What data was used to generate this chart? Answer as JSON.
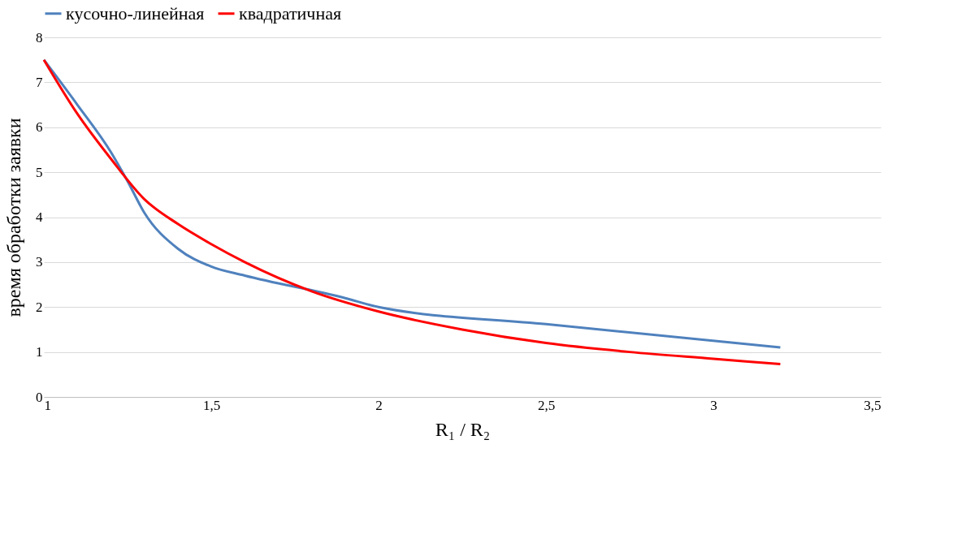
{
  "chart_data": {
    "type": "line",
    "xlabel": "R₁ / R₂",
    "ylabel": "время обработки заявки",
    "xlim": [
      1,
      3.5
    ],
    "xticks": [
      1,
      {
        "value": 1.5,
        "label": "1,5"
      },
      2,
      {
        "value": 2.5,
        "label": "2,5"
      },
      3,
      {
        "value": 3.5,
        "label": "3,5"
      }
    ],
    "ylim": [
      0,
      8
    ],
    "yticks": [
      0,
      1,
      2,
      3,
      4,
      5,
      6,
      7,
      8
    ],
    "grid": "y",
    "legend": "top",
    "marker": "none",
    "line_style": "solid",
    "series": [
      {
        "name": "кусочно-линейная",
        "color": "#4f81bd",
        "x": [
          1,
          1.1,
          1.2,
          1.25,
          1.3,
          1.4,
          1.5,
          1.6,
          1.9,
          2,
          2.5,
          3.2
        ],
        "values": [
          7.5,
          6.5,
          5.45,
          4.8,
          4.1,
          3.3,
          2.9,
          2.7,
          2.2,
          2.0,
          1.62,
          1.1
        ]
      },
      {
        "name": "квадратичная",
        "color": "#ff0000",
        "x": [
          1,
          1.1,
          1.2,
          1.3,
          1.4,
          1.5,
          1.6,
          1.8,
          2,
          2.25,
          2.5,
          2.75,
          3,
          3.2
        ],
        "values": [
          7.5,
          6.3,
          5.3,
          4.4,
          3.85,
          3.4,
          3.0,
          2.35,
          1.9,
          1.5,
          1.2,
          1.0,
          0.85,
          0.73
        ]
      }
    ]
  }
}
